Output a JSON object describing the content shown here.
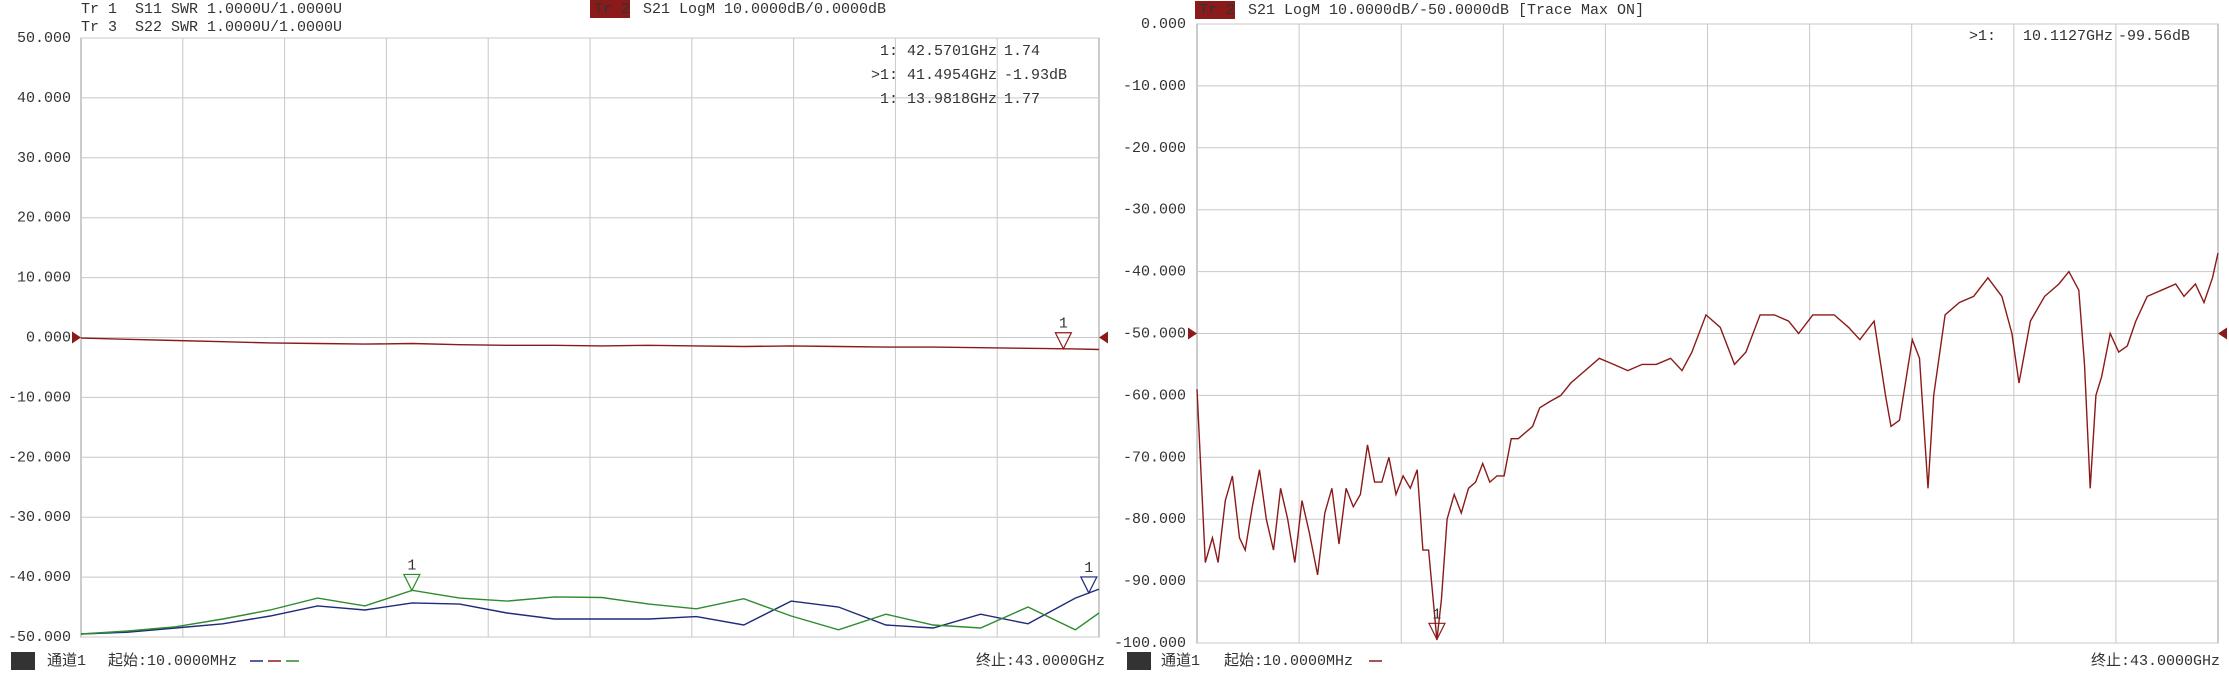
{
  "chart_data": [
    {
      "type": "line",
      "grid": true,
      "xlim": [
        0.01,
        43
      ],
      "ylim": [
        -50,
        50
      ],
      "ref_level": 0,
      "yticks": [
        {
          "value": 50,
          "label": "50.000"
        },
        {
          "value": 40,
          "label": "40.000"
        },
        {
          "value": 30,
          "label": "30.000"
        },
        {
          "value": 20,
          "label": "20.000"
        },
        {
          "value": 10,
          "label": "10.000"
        },
        {
          "value": 0,
          "label": "0.000"
        },
        {
          "value": -10,
          "label": "-10.000"
        },
        {
          "value": -20,
          "label": "-20.000"
        },
        {
          "value": -30,
          "label": "-30.000"
        },
        {
          "value": -40,
          "label": "-40.000"
        },
        {
          "value": -50,
          "label": "-50.000"
        }
      ],
      "x": [
        0.01,
        2,
        4,
        6,
        8,
        10,
        12,
        14,
        16,
        18,
        20,
        22,
        24,
        26,
        28,
        30,
        32,
        34,
        36,
        38,
        40,
        42,
        43
      ],
      "series": [
        {
          "name": "Tr 1",
          "setting": "S11 SWR 1.0000U/1.0000U",
          "color": "#1f2a7a",
          "values": [
            -49.5,
            -49.2,
            -48.5,
            -47.8,
            -46.5,
            -44.8,
            -45.5,
            -44.3,
            -44.5,
            -46,
            -47,
            -47,
            -47,
            -46.6,
            -48,
            -44,
            -45,
            -48,
            -48.5,
            -46.2,
            -47.8,
            -43.5,
            -42
          ],
          "marker": {
            "id": "1",
            "prefix": "1:",
            "x": {
              "value": 42.5701,
              "label": "42.5701GHz"
            },
            "readout": 1.74
          }
        },
        {
          "name": "Tr 2",
          "setting": "S21 LogM 10.0000dB/0.0000dB",
          "color": "#8b1a1a",
          "values": [
            -0.1,
            -0.3,
            -0.5,
            -0.7,
            -0.9,
            -1,
            -1.1,
            -1,
            -1.2,
            -1.3,
            -1.3,
            -1.4,
            -1.3,
            -1.4,
            -1.5,
            -1.4,
            -1.5,
            -1.6,
            -1.6,
            -1.7,
            -1.8,
            -1.9,
            -2
          ],
          "marker": {
            "id": "1",
            "prefix": ">1:",
            "x": {
              "value": 41.4954,
              "label": "41.4954GHz"
            },
            "readout": {
              "value": -1.93,
              "label": "-1.93dB"
            }
          }
        },
        {
          "name": "Tr 3",
          "setting": "S22 SWR 1.0000U/1.0000U",
          "color": "#2e8b2e",
          "values": [
            -49.5,
            -49,
            -48.3,
            -47,
            -45.5,
            -43.5,
            -44.8,
            -42.2,
            -43.5,
            -44,
            -43.3,
            -43.4,
            -44.5,
            -45.3,
            -43.6,
            -46.5,
            -48.8,
            -46.2,
            -48,
            -48.5,
            -45,
            -48.8,
            -46
          ],
          "marker": {
            "id": "1",
            "prefix": "1:",
            "x": {
              "value": 13.9818,
              "label": "13.9818GHz"
            },
            "readout": 1.77
          }
        }
      ],
      "footer": {
        "badge": "1",
        "channel": "通道1",
        "start": "起始:10.0000MHz",
        "stop": "终止:43.0000GHz"
      }
    },
    {
      "type": "line",
      "grid": true,
      "xlim": [
        0.01,
        43
      ],
      "ylim": [
        -100,
        0
      ],
      "ref_level": -50,
      "yticks": [
        {
          "value": 0,
          "label": "0.000"
        },
        {
          "value": -10,
          "label": "-10.000"
        },
        {
          "value": -20,
          "label": "-20.000"
        },
        {
          "value": -30,
          "label": "-30.000"
        },
        {
          "value": -40,
          "label": "-40.000"
        },
        {
          "value": -50,
          "label": "-50.000"
        },
        {
          "value": -60,
          "label": "-60.000"
        },
        {
          "value": -70,
          "label": "-70.000"
        },
        {
          "value": -80,
          "label": "-80.000"
        },
        {
          "value": -90,
          "label": "-90.000"
        },
        {
          "value": -100,
          "label": "-100.000"
        }
      ],
      "x": [
        0.01,
        0.36,
        0.66,
        0.9,
        1.2,
        1.5,
        1.8,
        2.04,
        2.34,
        2.64,
        2.93,
        3.23,
        3.53,
        3.83,
        4.13,
        4.43,
        4.73,
        5.09,
        5.39,
        5.69,
        5.99,
        6.29,
        6.59,
        6.89,
        7.19,
        7.49,
        7.79,
        8.09,
        8.39,
        8.69,
        8.99,
        9.28,
        9.52,
        9.76,
        10.11,
        10.3,
        10.54,
        10.84,
        11.14,
        11.44,
        11.74,
        12.04,
        12.34,
        12.64,
        12.94,
        13.24,
        13.54,
        13.84,
        14.14,
        14.44,
        14.86,
        15.33,
        15.75,
        16.35,
        16.95,
        17.55,
        18.15,
        18.75,
        19.35,
        19.95,
        20.43,
        20.85,
        21.44,
        22.04,
        22.64,
        23.12,
        23.72,
        24.32,
        24.92,
        25.34,
        25.94,
        26.84,
        27.44,
        27.92,
        28.52,
        29.0,
        29.23,
        29.59,
        30.13,
        30.43,
        30.79,
        31.03,
        31.51,
        32.11,
        32.71,
        33.31,
        33.9,
        34.32,
        34.62,
        35.1,
        35.7,
        36.3,
        36.72,
        37.14,
        37.38,
        37.62,
        37.86,
        38.1,
        38.46,
        38.82,
        39.18,
        39.54,
        40.02,
        40.62,
        41.22,
        41.57,
        42.05,
        42.41,
        42.77,
        43.0
      ],
      "series": [
        {
          "name": "Tr 2",
          "setting": "S21 LogM 10.0000dB/-50.0000dB  [Trace Max ON]",
          "color": "#8b1a1a",
          "values": [
            -59,
            -87,
            -83,
            -87,
            -77,
            -73,
            -83,
            -85,
            -78,
            -72,
            -80,
            -85,
            -75,
            -80,
            -87,
            -77,
            -82,
            -89,
            -79,
            -75,
            -84,
            -75,
            -78,
            -76,
            -68,
            -74,
            -74,
            -70,
            -76,
            -73,
            -75,
            -72,
            -85,
            -85,
            -99.5,
            -93,
            -80,
            -76,
            -79,
            -75,
            -74,
            -71,
            -74,
            -73,
            -73,
            -67,
            -67,
            -66,
            -65,
            -62,
            -61,
            -60,
            -58,
            -56,
            -54,
            -55,
            -56,
            -55,
            -55,
            -54,
            -56,
            -53,
            -47,
            -49,
            -55,
            -53,
            -47,
            -47,
            -48,
            -50,
            -47,
            -47,
            -49,
            -51,
            -48,
            -60,
            -65,
            -64,
            -51,
            -54,
            -75,
            -60,
            -47,
            -45,
            -44,
            -41,
            -44,
            -50,
            -58,
            -48,
            -44,
            -42,
            -40,
            -43,
            -55,
            -75,
            -60,
            -57,
            -50,
            -53,
            -52,
            -48,
            -44,
            -43,
            -42,
            -44,
            -42,
            -45,
            -41,
            -37
          ],
          "marker": {
            "id": "1",
            "prefix": ">1:",
            "x": {
              "value": 10.1127,
              "label": "10.1127GHz"
            },
            "readout": {
              "value": -99.56,
              "label": "-99.56dB"
            }
          }
        }
      ],
      "footer": {
        "badge": "1",
        "channel": "通道1",
        "start": "起始:10.0000MHz",
        "stop": "终止:43.0000GHz"
      }
    }
  ]
}
